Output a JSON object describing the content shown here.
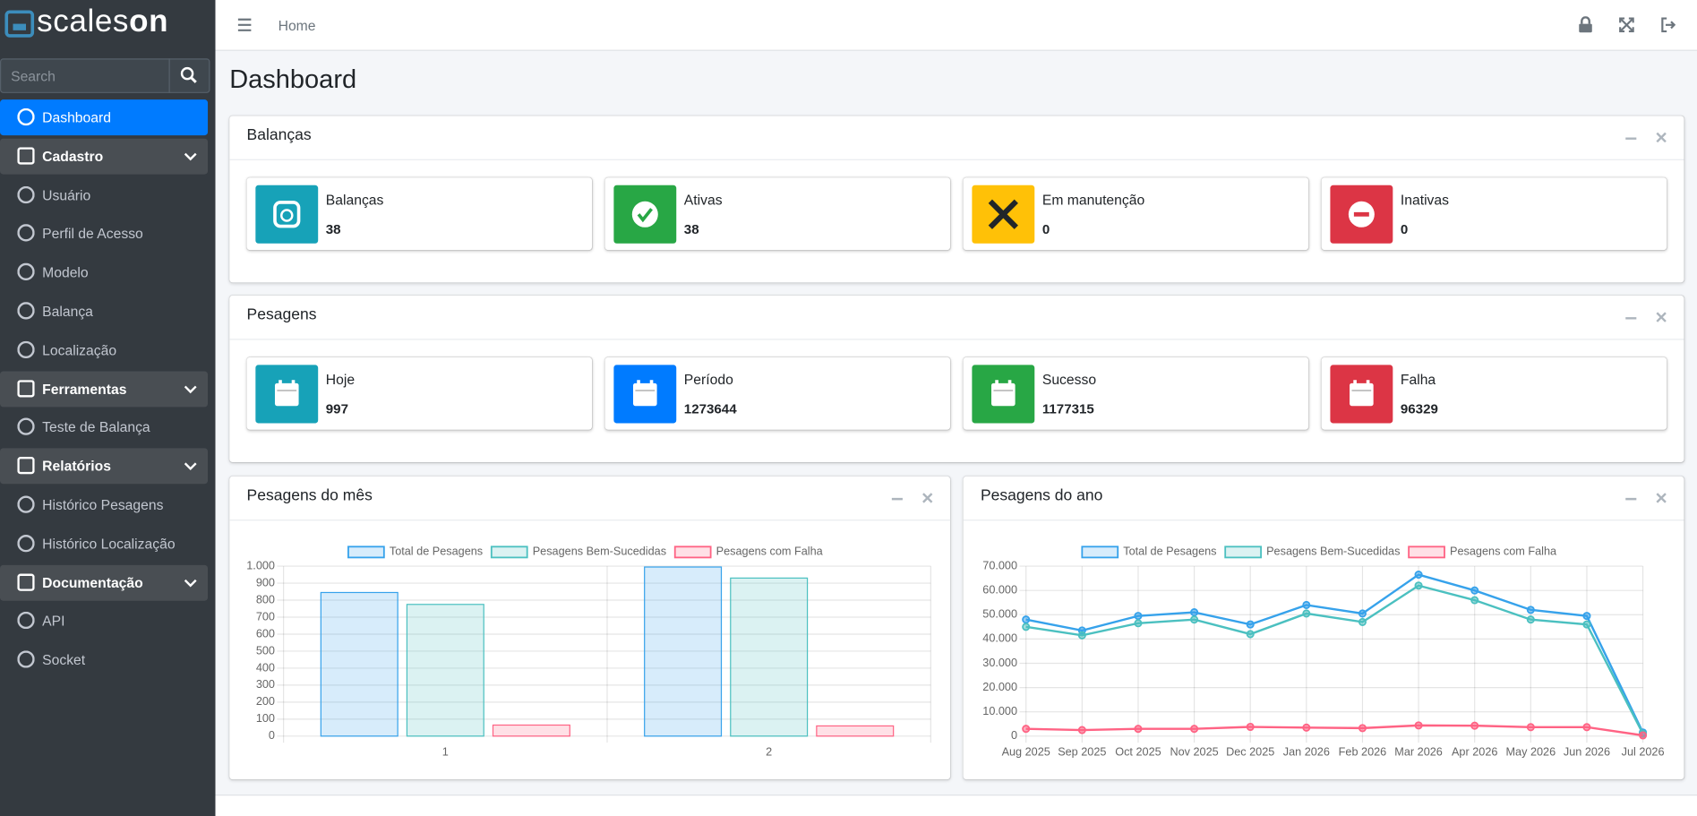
{
  "brand_prefix": "scales",
  "brand_suffix": "on",
  "search_placeholder": "Search",
  "breadcrumb": "Home",
  "page_title": "Dashboard",
  "menu": [
    {
      "label": "Dashboard",
      "active": true
    },
    {
      "label": "Cadastro",
      "group": true
    },
    {
      "label": "Usuário"
    },
    {
      "label": "Perfil de Acesso"
    },
    {
      "label": "Modelo"
    },
    {
      "label": "Balança"
    },
    {
      "label": "Localização"
    },
    {
      "label": "Ferramentas",
      "group": true
    },
    {
      "label": "Teste de Balança"
    },
    {
      "label": "Relatórios",
      "group": true
    },
    {
      "label": "Histórico Pesagens"
    },
    {
      "label": "Histórico Localização"
    },
    {
      "label": "Documentação",
      "group": true
    },
    {
      "label": "API"
    },
    {
      "label": "Socket"
    }
  ],
  "sections": [
    {
      "title": "Balanças",
      "boxes": [
        {
          "label": "Balanças",
          "value": "38",
          "color": "#17a2b8"
        },
        {
          "label": "Ativas",
          "value": "38",
          "color": "#28a745"
        },
        {
          "label": "Em manutenção",
          "value": "0",
          "color": "#ffc107"
        },
        {
          "label": "Inativas",
          "value": "0",
          "color": "#dc3545"
        }
      ]
    },
    {
      "title": "Pesagens",
      "boxes": [
        {
          "label": "Hoje",
          "value": "997",
          "color": "#17a2b8"
        },
        {
          "label": "Período",
          "value": "1273644",
          "color": "#007bff"
        },
        {
          "label": "Sucesso",
          "value": "1177315",
          "color": "#28a745"
        },
        {
          "label": "Falha",
          "value": "96329",
          "color": "#dc3545"
        }
      ]
    }
  ],
  "month_chart": {
    "type": "bar",
    "title": "Pesagens do mês",
    "categories": [
      "1",
      "2"
    ],
    "series": [
      {
        "name": "Total de Pesagens",
        "color": "#36a2eb",
        "values": [
          845,
          995
        ]
      },
      {
        "name": "Pesagens Bem-Sucedidas",
        "color": "#4bc0c0",
        "values": [
          775,
          930
        ]
      },
      {
        "name": "Pesagens com Falha",
        "color": "#ff6384",
        "values": [
          65,
          60
        ]
      }
    ],
    "ylim": [
      0,
      1000
    ],
    "yticks": [
      0,
      100,
      200,
      300,
      400,
      500,
      600,
      700,
      800,
      900,
      {
        "value": 1000,
        "label": "1.000"
      }
    ],
    "grid": true
  },
  "year_chart": {
    "type": "line",
    "title": "Pesagens do ano",
    "categories": [
      "Aug 2025",
      "Sep 2025",
      "Oct 2025",
      "Nov 2025",
      "Dec 2025",
      "Jan 2026",
      "Feb 2026",
      "Mar 2026",
      "Apr 2026",
      "May 2026",
      "Jun 2026",
      "Jul 2026"
    ],
    "series": [
      {
        "name": "Total de Pesagens",
        "color": "#36a2eb",
        "values": [
          48000,
          43500,
          49500,
          51000,
          46000,
          54000,
          50500,
          66500,
          60000,
          52000,
          49500,
          1500
        ]
      },
      {
        "name": "Pesagens Bem-Sucedidas",
        "color": "#4bc0c0",
        "values": [
          45000,
          41500,
          46500,
          48000,
          42000,
          50500,
          47000,
          62000,
          56000,
          48000,
          46000,
          1000
        ]
      },
      {
        "name": "Pesagens com Falha",
        "color": "#ff6384",
        "values": [
          3000,
          2500,
          3000,
          3000,
          3800,
          3500,
          3300,
          4400,
          4300,
          3700,
          3700,
          300
        ]
      }
    ],
    "ylim": [
      0,
      70000
    ],
    "yticks": [
      0,
      {
        "value": 10000,
        "label": "10.000"
      },
      {
        "value": 20000,
        "label": "20.000"
      },
      {
        "value": 30000,
        "label": "30.000"
      },
      {
        "value": 40000,
        "label": "40.000"
      },
      {
        "value": 50000,
        "label": "50.000"
      },
      {
        "value": 60000,
        "label": "60.000"
      },
      {
        "value": 70000,
        "label": "70.000"
      }
    ],
    "grid": true
  }
}
